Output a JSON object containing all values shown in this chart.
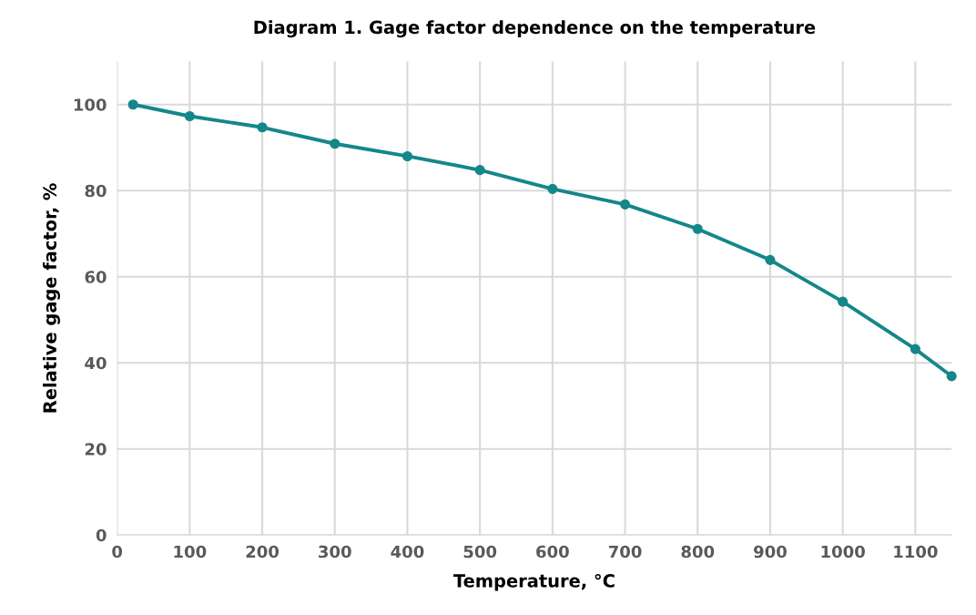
{
  "chart_data": {
    "type": "line",
    "title": "Diagram 1. Gage factor dependence on the temperature",
    "xlabel": "Temperature, °C",
    "ylabel": "Relative gage factor, %",
    "series": [
      {
        "color": "#14878a",
        "x": [
          22,
          100,
          200,
          300,
          400,
          500,
          600,
          700,
          800,
          900,
          1000,
          1100,
          1150
        ],
        "values": [
          100,
          97.3,
          94.7,
          90.9,
          88.0,
          84.8,
          80.4,
          76.8,
          71.1,
          63.9,
          54.2,
          43.2,
          36.9
        ]
      }
    ],
    "xlim": [
      0,
      1150
    ],
    "xticks": [
      0,
      100,
      200,
      300,
      400,
      500,
      600,
      700,
      800,
      900,
      1000,
      1100
    ],
    "ylim": [
      0,
      110
    ],
    "yticks": [
      0,
      20,
      40,
      60,
      80,
      100
    ],
    "grid": true,
    "marker": "circle",
    "line_style": "solid"
  }
}
